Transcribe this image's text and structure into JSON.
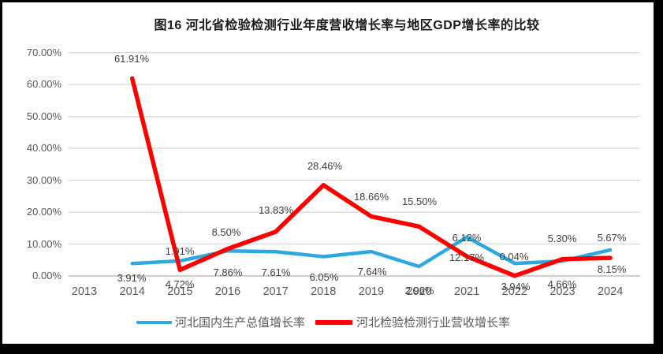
{
  "chart_data": {
    "type": "line",
    "title": "图16 河北省检验检测行业年度营收增长率与地区GDP增长率的比较",
    "categories": [
      "2013",
      "2014",
      "2015",
      "2016",
      "2017",
      "2018",
      "2019",
      "2020",
      "2021",
      "2022",
      "2023",
      "2024"
    ],
    "y_axis": {
      "min": 0,
      "max": 70,
      "tick_step": 10,
      "tick_labels": [
        "0.00%",
        "10.00%",
        "20.00%",
        "30.00%",
        "40.00%",
        "50.00%",
        "60.00%",
        "70.00%"
      ]
    },
    "grid": true,
    "legend_position": "bottom",
    "series": [
      {
        "name": "河北国内生产总值增长率",
        "color": "#2BA9E0",
        "line_width": 4.5,
        "start_category_index": 1,
        "values": [
          3.91,
          4.72,
          7.86,
          7.61,
          6.05,
          7.64,
          2.96,
          12.17,
          3.94,
          4.66,
          8.15
        ],
        "point_labels": [
          "3.91%",
          "4.72%",
          "7.86%",
          "7.61%",
          "6.05%",
          "7.64%",
          "2.96%",
          "12.17%",
          "3.94%",
          "4.66%",
          "8.15%"
        ],
        "label_positions": [
          [
            167,
            353
          ],
          [
            228,
            361
          ],
          [
            289,
            346
          ],
          [
            350,
            346
          ],
          [
            411,
            352
          ],
          [
            472,
            345
          ],
          [
            532,
            369
          ],
          [
            592,
            327
          ],
          [
            654,
            364
          ],
          [
            713,
            361
          ],
          [
            776,
            342
          ]
        ]
      },
      {
        "name": "河北检验检测行业营收增长率",
        "color": "#FF0000",
        "line_width": 5.5,
        "start_category_index": 1,
        "values": [
          61.91,
          1.91,
          8.5,
          13.83,
          28.46,
          18.66,
          15.5,
          6.12,
          0.04,
          5.3,
          5.67
        ],
        "point_labels": [
          "61.91%",
          "1.91%",
          "8.50%",
          "13.83%",
          "28.46%",
          "18.66%",
          "15.50%",
          "6.12%",
          "0.04%",
          "5.30%",
          "5.67%"
        ],
        "label_positions": [
          [
            167,
            75
          ],
          [
            228,
            319
          ],
          [
            287,
            295
          ],
          [
            350,
            267
          ],
          [
            412,
            211
          ],
          [
            471,
            250
          ],
          [
            532,
            256
          ],
          [
            592,
            302
          ],
          [
            652,
            326
          ],
          [
            713,
            303
          ],
          [
            776,
            302
          ]
        ]
      }
    ]
  }
}
